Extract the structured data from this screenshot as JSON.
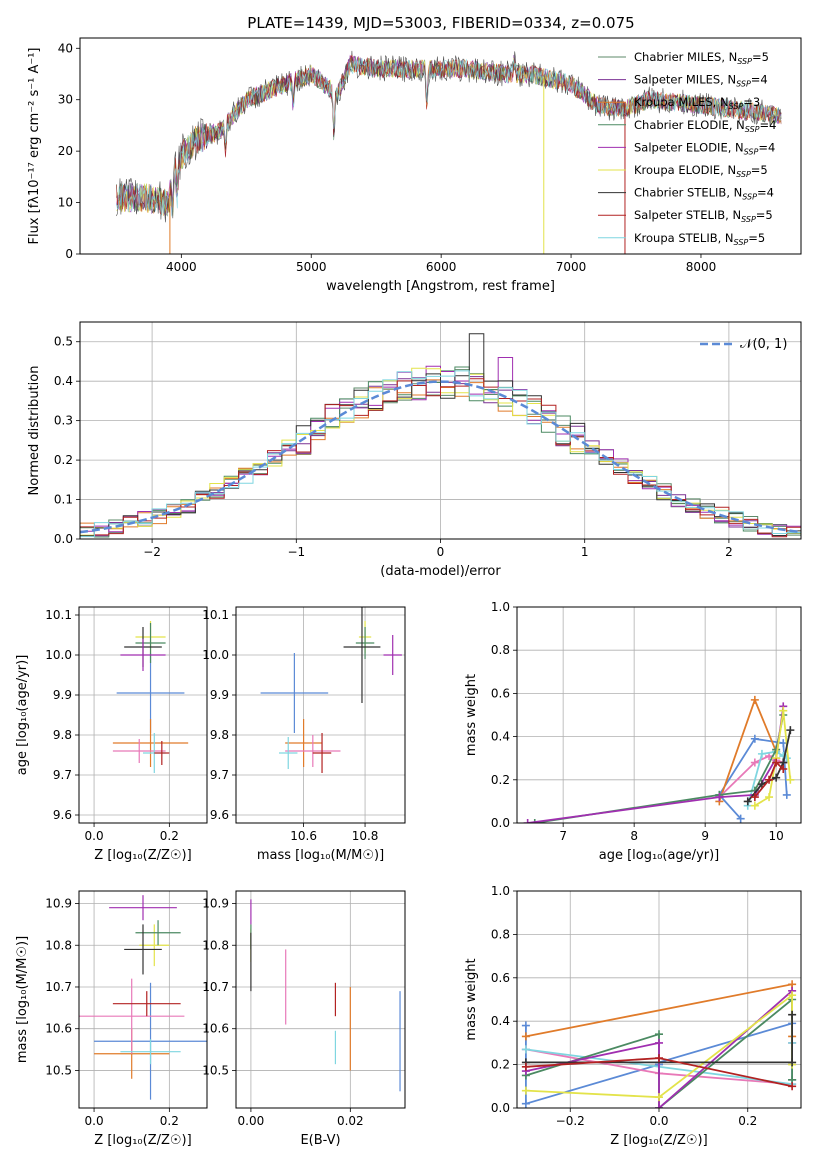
{
  "figure": {
    "title": "PLATE=1439, MJD=53003, FIBERID=0334, z=0.075"
  },
  "legend_top": [
    {
      "label": "Chabrier MILES, N",
      "sub": "SSP",
      "suffix": "=5",
      "color": "#5e8a6a"
    },
    {
      "label": "Salpeter MILES, N",
      "sub": "SSP",
      "suffix": "=4",
      "color": "#7b3294"
    },
    {
      "label": "Kroupa MILES, N",
      "sub": "SSP",
      "suffix": "=3",
      "color": "#e07b2a"
    },
    {
      "label": "Chabrier ELODIE, N",
      "sub": "SSP",
      "suffix": "=4",
      "color": "#4b8a62"
    },
    {
      "label": "Salpeter ELODIE, N",
      "sub": "SSP",
      "suffix": "=4",
      "color": "#a02fb0"
    },
    {
      "label": "Kroupa ELODIE, N",
      "sub": "SSP",
      "suffix": "=5",
      "color": "#e3e34a"
    },
    {
      "label": "Chabrier STELIB, N",
      "sub": "SSP",
      "suffix": "=4",
      "color": "#333333"
    },
    {
      "label": "Salpeter STELIB, N",
      "sub": "SSP",
      "suffix": "=5",
      "color": "#b22222"
    },
    {
      "label": "Kroupa STELIB, N",
      "sub": "SSP",
      "suffix": "=5",
      "color": "#7fd6e0"
    }
  ],
  "legend_mid": {
    "label": "𝒩(0, 1)",
    "color": "#5b8ad6"
  },
  "chart_data": [
    {
      "type": "line",
      "panel": "spectrum",
      "xlabel": "wavelength [Angstrom, rest frame]",
      "ylabel": "Flux [fλ10⁻¹⁷ erg cm⁻² s⁻¹ A⁻¹]",
      "xlim": [
        3220,
        8770
      ],
      "ylim": [
        0,
        42
      ],
      "xticks": [
        "4000",
        "5000",
        "6000",
        "7000",
        "8000"
      ],
      "yticks": [
        "0",
        "10",
        "20",
        "30",
        "40"
      ],
      "continuum": {
        "x": [
          3500,
          3700,
          3900,
          3950,
          4000,
          4100,
          4200,
          4300,
          4400,
          4500,
          4700,
          5000,
          5200,
          5300,
          5500,
          5800,
          6000,
          6200,
          6500,
          6700,
          7000,
          7200,
          7400,
          7600,
          8000,
          8300,
          8600
        ],
        "y": [
          11,
          11,
          10,
          16,
          19,
          22,
          23,
          24,
          27,
          30,
          32,
          35,
          31,
          37,
          36,
          36,
          36,
          36,
          35,
          35,
          33,
          29,
          28,
          30,
          29,
          28,
          27
        ]
      }
    },
    {
      "type": "area",
      "panel": "residual_histogram",
      "xlabel": "(data-model)/error",
      "ylabel": "Normed distribution",
      "xlim": [
        -2.5,
        2.5
      ],
      "ylim": [
        0,
        0.55
      ],
      "xticks": [
        "−2",
        "−1",
        "0",
        "1",
        "2"
      ],
      "yticks": [
        "0.0",
        "0.1",
        "0.2",
        "0.3",
        "0.4",
        "0.5"
      ],
      "gaussian": {
        "mean": 0,
        "sigma": 1
      }
    },
    {
      "type": "scatter",
      "panel": "Z_vs_age",
      "xlabel": "Z [log₁₀(Z/Z☉)]",
      "ylabel": "age  [log₁₀(age/yr)]",
      "xlim": [
        -0.04,
        0.3
      ],
      "ylim": [
        9.58,
        10.12
      ],
      "xticks": [
        "0.0",
        "0.2"
      ],
      "yticks": [
        "9.6",
        "9.7",
        "9.8",
        "9.9",
        "10.0",
        "10.1"
      ],
      "points": [
        {
          "x": 0.15,
          "y": 9.905,
          "xerr": 0.09,
          "yerr": 0.1,
          "color": "#5b8ad6"
        },
        {
          "x": 0.15,
          "y": 9.78,
          "xerr": 0.1,
          "yerr": 0.06,
          "color": "#e07b2a"
        },
        {
          "x": 0.12,
          "y": 9.76,
          "xerr": 0.07,
          "yerr": 0.03,
          "color": "#e879b8"
        },
        {
          "x": 0.16,
          "y": 9.755,
          "xerr": 0.03,
          "yerr": 0.05,
          "color": "#7fd6e0"
        },
        {
          "x": 0.18,
          "y": 9.755,
          "xerr": 0.02,
          "yerr": 0.03,
          "color": "#b22222"
        },
        {
          "x": 0.15,
          "y": 10.045,
          "xerr": 0.04,
          "yerr": 0.04,
          "color": "#e3e34a"
        },
        {
          "x": 0.15,
          "y": 10.03,
          "xerr": 0.04,
          "yerr": 0.05,
          "color": "#4b8a62"
        },
        {
          "x": 0.13,
          "y": 10.02,
          "xerr": 0.05,
          "yerr": 0.05,
          "color": "#333333"
        },
        {
          "x": 0.13,
          "y": 10.0,
          "xerr": 0.06,
          "yerr": 0.04,
          "color": "#a02fb0"
        }
      ]
    },
    {
      "type": "scatter",
      "panel": "mass_vs_age",
      "xlabel": "mass [log₁₀(M/M☉)]",
      "ylabel": "",
      "xlim": [
        10.38,
        10.93
      ],
      "ylim": [
        9.58,
        10.12
      ],
      "xticks": [
        "10.6",
        "10.8"
      ],
      "yticks": [
        "9.6",
        "9.7",
        "9.8",
        "9.9",
        "10.0",
        "10.1"
      ],
      "points": [
        {
          "x": 10.57,
          "y": 9.905,
          "xerr": 0.11,
          "yerr": 0.1,
          "color": "#5b8ad6"
        },
        {
          "x": 10.6,
          "y": 9.78,
          "xerr": 0.06,
          "yerr": 0.06,
          "color": "#e07b2a"
        },
        {
          "x": 10.63,
          "y": 9.76,
          "xerr": 0.09,
          "yerr": 0.04,
          "color": "#e879b8"
        },
        {
          "x": 10.55,
          "y": 9.755,
          "xerr": 0.03,
          "yerr": 0.04,
          "color": "#7fd6e0"
        },
        {
          "x": 10.66,
          "y": 9.755,
          "xerr": 0.03,
          "yerr": 0.05,
          "color": "#b22222"
        },
        {
          "x": 10.8,
          "y": 10.045,
          "xerr": 0.02,
          "yerr": 0.04,
          "color": "#e3e34a"
        },
        {
          "x": 10.8,
          "y": 10.03,
          "xerr": 0.03,
          "yerr": 0.04,
          "color": "#4b8a62"
        },
        {
          "x": 10.79,
          "y": 10.02,
          "xerr": 0.06,
          "yerr": 0.14,
          "color": "#333333"
        },
        {
          "x": 10.89,
          "y": 10.0,
          "xerr": 0.03,
          "yerr": 0.05,
          "color": "#a02fb0"
        }
      ]
    },
    {
      "type": "line",
      "panel": "age_vs_mass_weight",
      "xlabel": "age  [log₁₀(age/yr)]",
      "ylabel": "mass weight",
      "xlim": [
        6.35,
        10.35
      ],
      "ylim": [
        0,
        1.0
      ],
      "xticks": [
        "7",
        "8",
        "9",
        "10"
      ],
      "yticks": [
        "0.0",
        "0.2",
        "0.4",
        "0.6",
        "0.8",
        "1.0"
      ],
      "series": [
        {
          "color": "#5b8ad6",
          "x": [
            9.5,
            9.2,
            9.7,
            10.1,
            10.15
          ],
          "y": [
            0.02,
            0.13,
            0.39,
            0.37,
            0.13
          ]
        },
        {
          "color": "#e07b2a",
          "x": [
            9.2,
            9.7,
            10.0
          ],
          "y": [
            0.1,
            0.57,
            0.33
          ]
        },
        {
          "color": "#e879b8",
          "x": [
            9.2,
            9.7,
            9.9,
            10.0,
            10.1
          ],
          "y": [
            0.12,
            0.28,
            0.31,
            0.29,
            0.28
          ]
        },
        {
          "color": "#7fd6e0",
          "x": [
            9.6,
            9.8,
            10.0,
            10.1,
            10.15
          ],
          "y": [
            0.08,
            0.32,
            0.33,
            0.31,
            0.3
          ]
        },
        {
          "color": "#4b8a62",
          "x": [
            6.6,
            9.2,
            9.7,
            10.0,
            10.1
          ],
          "y": [
            0.0,
            0.13,
            0.15,
            0.34,
            0.5
          ]
        },
        {
          "color": "#a02fb0",
          "x": [
            6.5,
            9.2,
            9.7,
            10.0,
            10.1
          ],
          "y": [
            0.0,
            0.12,
            0.13,
            0.3,
            0.54
          ]
        },
        {
          "color": "#e3e34a",
          "x": [
            9.7,
            9.9,
            10.0,
            10.1,
            10.2
          ],
          "y": [
            0.08,
            0.12,
            0.3,
            0.52,
            0.2
          ]
        },
        {
          "color": "#333333",
          "x": [
            9.6,
            9.8,
            10.0,
            10.1,
            10.2
          ],
          "y": [
            0.1,
            0.18,
            0.21,
            0.28,
            0.43
          ]
        },
        {
          "color": "#b22222",
          "x": [
            9.7,
            9.9,
            10.0,
            10.1
          ],
          "y": [
            0.12,
            0.2,
            0.28,
            0.25
          ]
        }
      ]
    },
    {
      "type": "scatter",
      "panel": "Z_vs_mass",
      "xlabel": "Z [log₁₀(Z/Z☉)]",
      "ylabel": "mass [log₁₀(M/M☉)]",
      "xlim": [
        -0.04,
        0.3
      ],
      "ylim": [
        10.41,
        10.93
      ],
      "xticks": [
        "0.0",
        "0.2"
      ],
      "yticks": [
        "10.5",
        "10.6",
        "10.7",
        "10.8",
        "10.9"
      ],
      "points": [
        {
          "x": 0.15,
          "y": 10.57,
          "xerr": 0.15,
          "yerr": 0.14,
          "color": "#5b8ad6"
        },
        {
          "x": 0.1,
          "y": 10.54,
          "xerr": 0.1,
          "yerr": 0.06,
          "color": "#e07b2a"
        },
        {
          "x": 0.1,
          "y": 10.63,
          "xerr": 0.14,
          "yerr": 0.09,
          "color": "#e879b8"
        },
        {
          "x": 0.15,
          "y": 10.545,
          "xerr": 0.08,
          "yerr": 0.03,
          "color": "#7fd6e0"
        },
        {
          "x": 0.14,
          "y": 10.66,
          "xerr": 0.09,
          "yerr": 0.03,
          "color": "#b22222"
        },
        {
          "x": 0.16,
          "y": 10.8,
          "xerr": 0.04,
          "yerr": 0.05,
          "color": "#e3e34a"
        },
        {
          "x": 0.17,
          "y": 10.83,
          "xerr": 0.06,
          "yerr": 0.03,
          "color": "#4b8a62"
        },
        {
          "x": 0.13,
          "y": 10.79,
          "xerr": 0.05,
          "yerr": 0.06,
          "color": "#333333"
        },
        {
          "x": 0.13,
          "y": 10.89,
          "xerr": 0.09,
          "yerr": 0.03,
          "color": "#a02fb0"
        }
      ]
    },
    {
      "type": "scatter",
      "panel": "EBV_vs_mass",
      "xlabel": "E(B-V)",
      "ylabel": "",
      "xlim": [
        -0.003,
        0.031
      ],
      "ylim": [
        10.41,
        10.93
      ],
      "xticks": [
        "0.00",
        "0.02"
      ],
      "yticks": [
        "10.5",
        "10.6",
        "10.7",
        "10.8",
        "10.9"
      ],
      "points": [
        {
          "x": 0.03,
          "y": 10.57,
          "yerr": 0.12,
          "color": "#5b8ad6"
        },
        {
          "x": 0.02,
          "y": 10.6,
          "yerr": 0.1,
          "color": "#e07b2a"
        },
        {
          "x": 0.007,
          "y": 10.7,
          "yerr": 0.09,
          "color": "#e879b8"
        },
        {
          "x": 0.017,
          "y": 10.555,
          "yerr": 0.04,
          "color": "#7fd6e0"
        },
        {
          "x": 0.017,
          "y": 10.67,
          "yerr": 0.04,
          "color": "#b22222"
        },
        {
          "x": 0.0,
          "y": 10.8,
          "yerr": 0.04,
          "color": "#e3e34a"
        },
        {
          "x": 0.0,
          "y": 10.82,
          "yerr": 0.03,
          "color": "#4b8a62"
        },
        {
          "x": 0.0,
          "y": 10.76,
          "yerr": 0.07,
          "color": "#333333"
        },
        {
          "x": 0.0,
          "y": 10.88,
          "yerr": 0.03,
          "color": "#a02fb0"
        }
      ]
    },
    {
      "type": "line",
      "panel": "Z_vs_mass_weight",
      "xlabel": "Z [log₁₀(Z/Z☉)]",
      "ylabel": "mass weight",
      "xlim": [
        -0.32,
        0.32
      ],
      "ylim": [
        0,
        1.0
      ],
      "xticks": [
        "−0.2",
        "0.0",
        "0.2"
      ],
      "yticks": [
        "0.0",
        "0.2",
        "0.4",
        "0.6",
        "0.8",
        "1.0"
      ],
      "series": [
        {
          "color": "#5b8ad6",
          "x": [
            -0.3,
            -0.3,
            0.0,
            0.0,
            0.3,
            0.3
          ],
          "y": [
            0.38,
            0.02,
            0.2,
            0.21,
            0.39,
            0.13
          ]
        },
        {
          "color": "#e07b2a",
          "x": [
            -0.3,
            0.3,
            0.3
          ],
          "y": [
            0.33,
            0.57,
            0.33
          ]
        },
        {
          "color": "#e879b8",
          "x": [
            -0.3,
            0.0,
            0.3,
            0.3
          ],
          "y": [
            0.27,
            0.16,
            0.11,
            0.3
          ]
        },
        {
          "color": "#7fd6e0",
          "x": [
            -0.3,
            0.3,
            0.3
          ],
          "y": [
            0.27,
            0.11,
            0.3
          ]
        },
        {
          "color": "#4b8a62",
          "x": [
            -0.3,
            0.0,
            0.0,
            0.3,
            0.3
          ],
          "y": [
            0.15,
            0.34,
            0.0,
            0.5,
            0.13
          ]
        },
        {
          "color": "#a02fb0",
          "x": [
            -0.3,
            0.0,
            0.0,
            0.3
          ],
          "y": [
            0.17,
            0.3,
            0.0,
            0.54
          ]
        },
        {
          "color": "#e3e34a",
          "x": [
            -0.3,
            0.0,
            0.3,
            0.3
          ],
          "y": [
            0.08,
            0.05,
            0.52,
            0.2
          ]
        },
        {
          "color": "#333333",
          "x": [
            -0.3,
            0.3,
            0.3
          ],
          "y": [
            0.21,
            0.21,
            0.43
          ]
        },
        {
          "color": "#b22222",
          "x": [
            -0.3,
            0.0,
            0.3
          ],
          "y": [
            0.19,
            0.23,
            0.1
          ]
        }
      ]
    }
  ]
}
